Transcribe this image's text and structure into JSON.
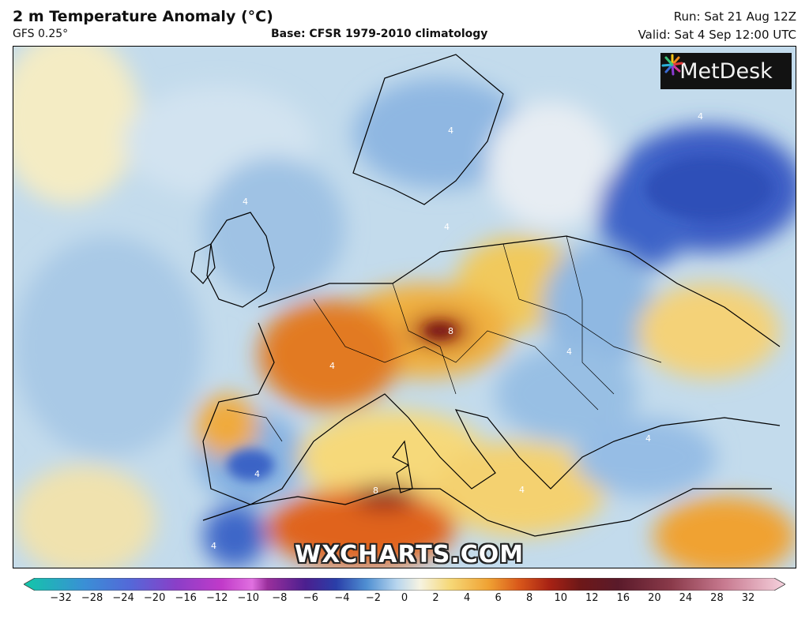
{
  "header": {
    "title": "2 m Temperature Anomaly (°C)",
    "model": "GFS 0.25°",
    "base": "Base: CFSR 1979-2010 climatology",
    "run": "Run: Sat 21 Aug 12Z",
    "valid": "Valid: Sat 4 Sep 12:00 UTC"
  },
  "logo": {
    "text": "MetDesk",
    "icon": "starburst-icon"
  },
  "watermark": "WXCHARTS.COM",
  "colorbar": {
    "ticks": [
      "−32",
      "−28",
      "−24",
      "−20",
      "−16",
      "−12",
      "−10",
      "−8",
      "−6",
      "−4",
      "−2",
      "0",
      "2",
      "4",
      "6",
      "8",
      "10",
      "12",
      "16",
      "20",
      "24",
      "28",
      "32"
    ],
    "colors": [
      "#12c7a8",
      "#3a8fd6",
      "#5468d8",
      "#7a3fc8",
      "#b13ac9",
      "#d55fd4",
      "#9a2f9c",
      "#4b1f8f",
      "#2a3ea8",
      "#4f8fd2",
      "#b8d6ee",
      "#f3f3ea",
      "#f8e3a6",
      "#f2b63e",
      "#e0781f",
      "#b92b12",
      "#7a1a1a",
      "#5a1a2a",
      "#8a3a4a",
      "#b85d6e",
      "#d888a0",
      "#f0c0d0"
    ]
  },
  "contour_labels": [
    "4",
    "4",
    "4",
    "4",
    "4",
    "4",
    "4",
    "4",
    "8",
    "8",
    "4",
    "4"
  ]
}
